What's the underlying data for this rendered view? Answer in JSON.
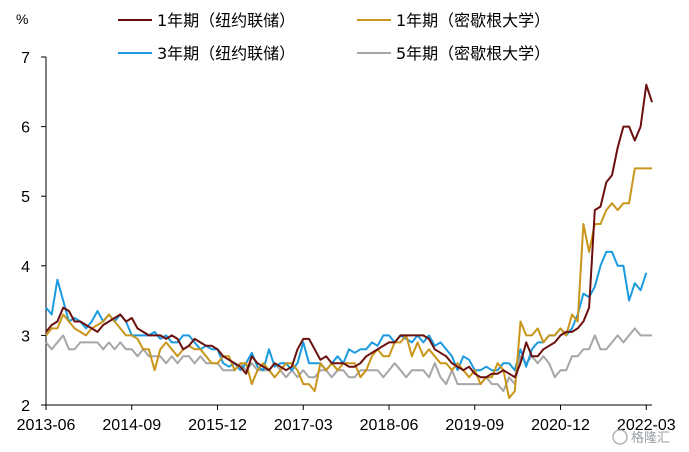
{
  "chart_data": {
    "type": "line",
    "title": "",
    "unit_label": "%",
    "ylim": [
      2,
      7
    ],
    "yticks": [
      2,
      3,
      4,
      5,
      6,
      7
    ],
    "xlim": [
      0,
      106
    ],
    "x_tick_labels": [
      "2013-06",
      "2014-09",
      "2015-12",
      "2017-03",
      "2018-06",
      "2019-09",
      "2020-12",
      "2022-03"
    ],
    "x_tick_positions": [
      0,
      15,
      30,
      45,
      60,
      75,
      90,
      105
    ],
    "grid": false,
    "legend_position": "top",
    "series": [
      {
        "name": "1年期（纽约联储）",
        "color": "#6b0f0f",
        "values": [
          3.05,
          3.15,
          3.2,
          3.4,
          3.35,
          3.2,
          3.2,
          3.15,
          3.1,
          3.05,
          3.15,
          3.2,
          3.25,
          3.3,
          3.2,
          3.25,
          3.1,
          3.05,
          3.0,
          3.0,
          3.0,
          2.95,
          3.0,
          2.95,
          2.8,
          2.85,
          2.95,
          2.9,
          2.85,
          2.85,
          2.8,
          2.7,
          2.65,
          2.6,
          2.55,
          2.45,
          2.7,
          2.6,
          2.55,
          2.5,
          2.6,
          2.55,
          2.5,
          2.55,
          2.8,
          2.95,
          2.95,
          2.8,
          2.65,
          2.7,
          2.6,
          2.6,
          2.6,
          2.55,
          2.55,
          2.6,
          2.7,
          2.75,
          2.8,
          2.85,
          2.9,
          2.9,
          3.0,
          3.0,
          3.0,
          3.0,
          3.0,
          2.95,
          2.8,
          2.75,
          2.7,
          2.6,
          2.55,
          2.5,
          2.55,
          2.45,
          2.4,
          2.4,
          2.45,
          2.45,
          2.5,
          2.45,
          2.4,
          2.6,
          2.9,
          2.7,
          2.7,
          2.8,
          2.85,
          2.9,
          3.0,
          3.05,
          3.05,
          3.1,
          3.2,
          3.4,
          4.8,
          4.85,
          5.2,
          5.3,
          5.7,
          6.0,
          6.0,
          5.8,
          6.0,
          6.6,
          6.35
        ]
      },
      {
        "name": "1年期（密歇根大学）",
        "color": "#c9961a",
        "values": [
          3.0,
          3.1,
          3.1,
          3.3,
          3.2,
          3.1,
          3.05,
          3.0,
          3.1,
          3.15,
          3.2,
          3.3,
          3.2,
          3.1,
          3.0,
          3.0,
          2.95,
          2.8,
          2.8,
          2.5,
          2.8,
          2.9,
          2.8,
          2.7,
          2.8,
          2.85,
          2.8,
          2.8,
          2.7,
          2.6,
          2.6,
          2.7,
          2.7,
          2.5,
          2.6,
          2.6,
          2.3,
          2.5,
          2.6,
          2.5,
          2.4,
          2.5,
          2.6,
          2.6,
          2.5,
          2.3,
          2.3,
          2.2,
          2.6,
          2.5,
          2.6,
          2.5,
          2.6,
          2.6,
          2.6,
          2.4,
          2.5,
          2.7,
          2.8,
          2.7,
          2.7,
          2.9,
          2.9,
          3.0,
          2.7,
          2.9,
          2.7,
          2.8,
          2.7,
          2.6,
          2.6,
          2.5,
          2.6,
          2.5,
          2.4,
          2.5,
          2.3,
          2.4,
          2.4,
          2.6,
          2.5,
          2.1,
          2.2,
          3.2,
          3.0,
          3.0,
          3.1,
          2.9,
          3.0,
          3.0,
          3.1,
          3.0,
          3.3,
          3.2,
          4.6,
          4.2,
          4.6,
          4.6,
          4.8,
          4.9,
          4.8,
          4.9,
          4.9,
          5.4,
          5.4,
          5.4,
          5.4
        ]
      },
      {
        "name": "3年期（纽约联储）",
        "color": "#1a9be0",
        "values": [
          3.4,
          3.3,
          3.8,
          3.5,
          3.2,
          3.25,
          3.2,
          3.1,
          3.2,
          3.35,
          3.2,
          3.3,
          3.2,
          3.3,
          3.2,
          3.0,
          3.0,
          3.0,
          3.0,
          3.05,
          2.95,
          3.0,
          2.9,
          2.9,
          3.0,
          3.0,
          2.9,
          2.8,
          2.85,
          2.8,
          2.8,
          2.6,
          2.55,
          2.6,
          2.5,
          2.6,
          2.75,
          2.55,
          2.5,
          2.8,
          2.55,
          2.6,
          2.6,
          2.5,
          2.6,
          2.9,
          2.6,
          2.6,
          2.6,
          2.5,
          2.6,
          2.7,
          2.6,
          2.8,
          2.75,
          2.8,
          2.8,
          2.9,
          2.85,
          3.0,
          3.0,
          2.9,
          3.0,
          2.95,
          2.9,
          3.0,
          2.9,
          3.0,
          2.85,
          2.9,
          2.8,
          2.7,
          2.5,
          2.7,
          2.65,
          2.5,
          2.5,
          2.55,
          2.5,
          2.5,
          2.6,
          2.6,
          2.5,
          2.8,
          2.55,
          2.8,
          2.9,
          2.9,
          3.0,
          3.0,
          3.1,
          3.0,
          3.1,
          3.3,
          3.6,
          3.55,
          3.7,
          4.0,
          4.2,
          4.2,
          4.0,
          4.0,
          3.5,
          3.75,
          3.65,
          3.9
        ]
      },
      {
        "name": "5年期（密歇根大学）",
        "color": "#a6a6a6",
        "values": [
          2.9,
          2.8,
          2.9,
          3.0,
          2.8,
          2.8,
          2.9,
          2.9,
          2.9,
          2.9,
          2.8,
          2.9,
          2.8,
          2.9,
          2.8,
          2.8,
          2.7,
          2.8,
          2.7,
          2.7,
          2.7,
          2.6,
          2.7,
          2.6,
          2.7,
          2.7,
          2.6,
          2.7,
          2.6,
          2.6,
          2.6,
          2.5,
          2.5,
          2.5,
          2.6,
          2.5,
          2.6,
          2.5,
          2.5,
          2.5,
          2.6,
          2.5,
          2.4,
          2.5,
          2.4,
          2.5,
          2.4,
          2.4,
          2.5,
          2.5,
          2.4,
          2.5,
          2.5,
          2.4,
          2.4,
          2.5,
          2.5,
          2.5,
          2.5,
          2.4,
          2.5,
          2.6,
          2.5,
          2.4,
          2.5,
          2.5,
          2.5,
          2.4,
          2.6,
          2.4,
          2.3,
          2.5,
          2.3,
          2.3,
          2.3,
          2.3,
          2.3,
          2.4,
          2.3,
          2.3,
          2.2,
          2.4,
          2.3,
          2.7,
          2.6,
          2.7,
          2.6,
          2.7,
          2.6,
          2.4,
          2.5,
          2.5,
          2.7,
          2.7,
          2.8,
          2.8,
          3.0,
          2.8,
          2.8,
          2.9,
          3.0,
          2.9,
          3.0,
          3.1,
          3.0,
          3.0,
          3.0
        ]
      }
    ]
  },
  "watermark": "格隆汇"
}
